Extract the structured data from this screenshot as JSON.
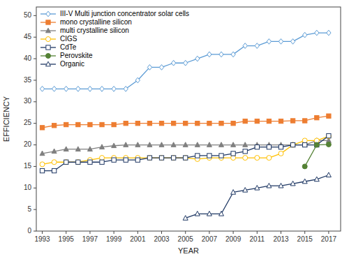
{
  "chart_data": {
    "type": "line",
    "xlabel": "YEAR",
    "ylabel": "EFFICIENCY",
    "x": [
      1993,
      1994,
      1995,
      1996,
      1997,
      1998,
      1999,
      2000,
      2001,
      2002,
      2003,
      2004,
      2005,
      2006,
      2007,
      2008,
      2009,
      2010,
      2011,
      2012,
      2013,
      2014,
      2015,
      2016,
      2017
    ],
    "series": [
      {
        "name": "III-V Multi junction concentrator solar cells",
        "color": "#5b9bd5",
        "marker": "diamond-open",
        "values": [
          33,
          33,
          33,
          33,
          33,
          33,
          33,
          33,
          35,
          38,
          38,
          39,
          39,
          40,
          41,
          41,
          41,
          43,
          43,
          44,
          44,
          44,
          45.5,
          46,
          46
        ]
      },
      {
        "name": "mono crystalline silicon",
        "color": "#ed7d31",
        "marker": "square",
        "values": [
          24,
          24.5,
          24.7,
          24.7,
          24.7,
          24.7,
          24.7,
          25,
          25,
          25,
          25,
          25,
          25,
          25,
          25,
          25,
          25,
          25.5,
          25.5,
          25.5,
          25.5,
          25.6,
          25.6,
          26.3,
          26.7
        ]
      },
      {
        "name": "multi crystalline silicon",
        "color": "#808080",
        "marker": "triangle",
        "values": [
          18,
          18.5,
          19,
          19,
          19,
          19.5,
          19.8,
          20,
          20,
          20,
          20,
          20,
          20,
          20,
          20,
          20,
          20,
          20,
          20,
          20,
          20,
          20,
          20,
          21,
          21
        ]
      },
      {
        "name": "CIGS",
        "color": "#ffc000",
        "marker": "circle-open",
        "values": [
          15.5,
          16,
          16,
          16,
          16.5,
          17,
          17,
          17,
          17,
          17,
          17,
          17,
          17,
          16.7,
          17,
          17,
          17,
          17,
          17,
          17,
          18,
          20,
          21,
          21,
          22
        ]
      },
      {
        "name": "CdTe",
        "color": "#203864",
        "marker": "square-open",
        "values": [
          14,
          14,
          16,
          16,
          16,
          16,
          16.5,
          16.5,
          16.5,
          17,
          17,
          17,
          17,
          17.5,
          17.5,
          17.5,
          18,
          18.5,
          19.5,
          19.5,
          19.5,
          20,
          20,
          20,
          22.1
        ]
      },
      {
        "name": "Perovskite",
        "color": "#548235",
        "marker": "circle",
        "values": [
          null,
          null,
          null,
          null,
          null,
          null,
          null,
          null,
          null,
          null,
          null,
          null,
          null,
          null,
          null,
          null,
          null,
          null,
          null,
          null,
          null,
          null,
          15,
          20,
          20.1
        ]
      },
      {
        "name": "Organic",
        "color": "#1f3864",
        "marker": "triangle-open",
        "values": [
          null,
          null,
          null,
          null,
          null,
          null,
          null,
          null,
          null,
          null,
          null,
          null,
          3.0,
          4.0,
          4.0,
          4.0,
          9.0,
          9.5,
          10,
          10.5,
          10.5,
          11,
          11.5,
          12,
          13
        ]
      }
    ],
    "xlim": [
      1992.5,
      2018
    ],
    "ylim": [
      0,
      52
    ],
    "xticks": [
      1993,
      1995,
      1997,
      1999,
      2001,
      2003,
      2005,
      2007,
      2009,
      2011,
      2013,
      2015,
      2017
    ],
    "yticks": [
      0,
      5,
      10,
      15,
      20,
      25,
      30,
      35,
      40,
      45,
      50
    ],
    "grid": false,
    "legend": "upper left"
  }
}
